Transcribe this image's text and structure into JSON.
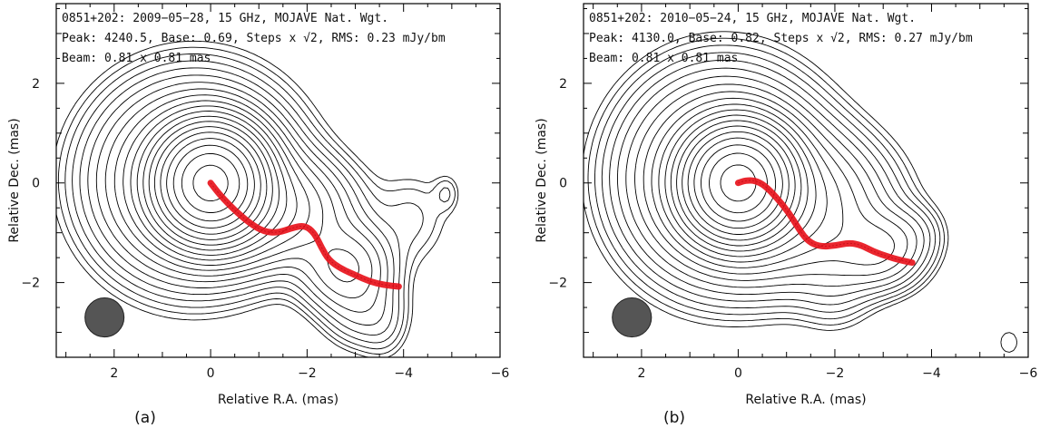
{
  "chart_data": [
    {
      "type": "contour",
      "panel_label": "(a)",
      "header": [
        "0851+202: 2009−05−28, 15 GHz, MOJAVE Nat. Wgt.",
        "Peak: 4240.5, Base: 0.69, Steps x √2, RMS: 0.23 mJy/bm",
        "Beam: 0.81 x 0.81 mas"
      ],
      "xlabel": "Relative R.A. (mas)",
      "ylabel": "Relative Dec. (mas)",
      "xlim": [
        3.2,
        -6
      ],
      "ylim": [
        -3.5,
        3.6
      ],
      "xticks": [
        2,
        0,
        -2,
        -4,
        -6
      ],
      "yticks": [
        2,
        0,
        -2
      ],
      "beam": {
        "major": 0.81,
        "minor": 0.81,
        "center": [
          2.2,
          -2.7
        ]
      },
      "n_contours": 22,
      "ridge_line": [
        [
          0,
          0
        ],
        [
          -0.2,
          -0.25
        ],
        [
          -0.5,
          -0.55
        ],
        [
          -0.8,
          -0.8
        ],
        [
          -1.1,
          -0.98
        ],
        [
          -1.4,
          -1.0
        ],
        [
          -1.7,
          -0.9
        ],
        [
          -1.95,
          -0.85
        ],
        [
          -2.15,
          -1.0
        ],
        [
          -2.3,
          -1.3
        ],
        [
          -2.45,
          -1.55
        ],
        [
          -2.7,
          -1.72
        ],
        [
          -3.0,
          -1.85
        ],
        [
          -3.3,
          -1.98
        ],
        [
          -3.6,
          -2.05
        ],
        [
          -3.9,
          -2.08
        ]
      ]
    },
    {
      "type": "contour",
      "panel_label": "(b)",
      "header": [
        "0851+202: 2010−05−24, 15 GHz, MOJAVE Nat. Wgt.",
        "Peak: 4130.0, Base: 0.82, Steps x √2, RMS: 0.27 mJy/bm",
        "Beam: 0.81 x 0.81 mas"
      ],
      "xlabel": "Relative R.A. (mas)",
      "ylabel": "Relative Dec. (mas)",
      "xlim": [
        3.2,
        -6
      ],
      "ylim": [
        -3.5,
        3.6
      ],
      "xticks": [
        2,
        0,
        -2,
        -4,
        -6
      ],
      "yticks": [
        2,
        0,
        -2
      ],
      "beam": {
        "major": 0.81,
        "minor": 0.81,
        "center": [
          2.2,
          -2.7
        ]
      },
      "n_contours": 22,
      "ridge_line": [
        [
          0,
          0
        ],
        [
          -0.15,
          0.05
        ],
        [
          -0.35,
          0.05
        ],
        [
          -0.55,
          -0.05
        ],
        [
          -0.8,
          -0.3
        ],
        [
          -1.05,
          -0.6
        ],
        [
          -1.25,
          -0.92
        ],
        [
          -1.45,
          -1.18
        ],
        [
          -1.7,
          -1.28
        ],
        [
          -2.0,
          -1.26
        ],
        [
          -2.3,
          -1.2
        ],
        [
          -2.55,
          -1.25
        ],
        [
          -2.8,
          -1.38
        ],
        [
          -3.1,
          -1.48
        ],
        [
          -3.35,
          -1.55
        ],
        [
          -3.6,
          -1.6
        ]
      ]
    }
  ]
}
